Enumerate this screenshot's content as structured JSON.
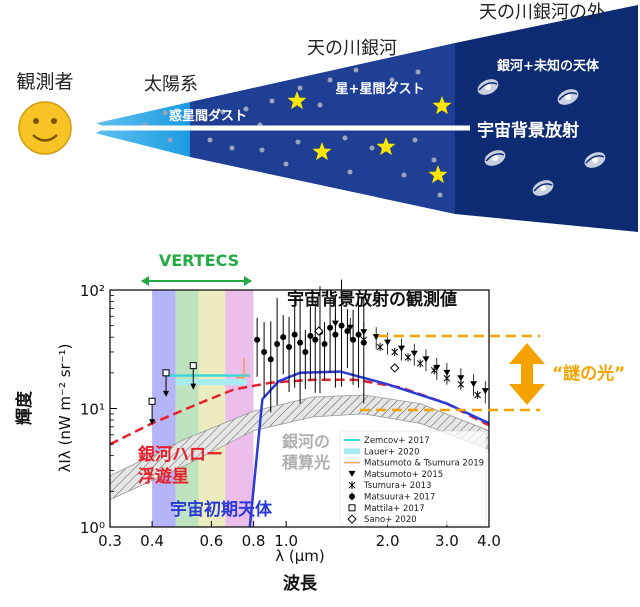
{
  "diagram": {
    "regions": {
      "observer": "観測者",
      "solar_system": "太陽系",
      "milky_way": "天の川銀河",
      "outside": "天の川銀河の外"
    },
    "band_labels": {
      "interplanetary_dust": "惑星間ダスト",
      "stars_dust": "星+星間ダスト",
      "galaxies_unknown": "銀河+未知の天体",
      "cib": "宇宙背景放射"
    }
  },
  "chart_data": {
    "type": "scatter",
    "title": "宇宙背景放射の観測値",
    "xlabel": "λ (μm)",
    "ylabel": "λIλ (nW m⁻² sr⁻¹)",
    "xlabel_jp": "波長",
    "ylabel_jp": "輝度",
    "xscale": "log",
    "yscale": "log",
    "xlim": [
      0.3,
      4.0
    ],
    "ylim": [
      1,
      100
    ],
    "x_ticks": [
      {
        "v": 0.3,
        "l": "0.3"
      },
      {
        "v": 0.4,
        "l": "0.4"
      },
      {
        "v": 0.6,
        "l": "0.6"
      },
      {
        "v": 0.8,
        "l": "0.8"
      },
      {
        "v": 1.0,
        "l": "1.0"
      },
      {
        "v": 2.0,
        "l": "2.0"
      },
      {
        "v": 3.0,
        "l": "3.0"
      },
      {
        "v": 4.0,
        "l": "4.0"
      }
    ],
    "y_ticks": [
      {
        "v": 1,
        "l": "10⁰"
      },
      {
        "v": 10,
        "l": "10¹"
      },
      {
        "v": 100,
        "l": "10²"
      }
    ],
    "vertecs": {
      "label": "VERTECS",
      "color": "#22aa44",
      "bands": [
        {
          "x0": 0.4,
          "x1": 0.47,
          "color": "#7777ee"
        },
        {
          "x0": 0.47,
          "x1": 0.55,
          "color": "#88cc88"
        },
        {
          "x0": 0.55,
          "x1": 0.66,
          "color": "#dddd88"
        },
        {
          "x0": 0.66,
          "x1": 0.8,
          "color": "#dd88dd"
        }
      ]
    },
    "mystery": {
      "label": "“謎の光”",
      "y_high": 38,
      "y_low": 10,
      "color": "#f5a300"
    },
    "labels": {
      "halo": "銀河ハロー\n浮遊星",
      "igl": "銀河の\n積算光",
      "early": "宇宙初期天体"
    },
    "series": [
      {
        "name": "Zemcov+ 2017",
        "color": "#40d8d8",
        "points": [
          [
            0.44,
            19
          ],
          [
            0.66,
            19
          ],
          [
            0.78,
            19
          ]
        ]
      },
      {
        "name": "Lauer+ 2020",
        "color": "#a8ecf4",
        "points": [
          [
            0.6,
            16.7
          ]
        ]
      },
      {
        "name": "Matsumoto & Tsumura 2019",
        "color": "#e8a060",
        "points": [
          [
            0.75,
            23
          ]
        ]
      },
      {
        "name": "Matsumoto+ 2015",
        "color": "#000000",
        "points": [
          [
            1.4,
            52
          ],
          [
            1.55,
            48
          ],
          [
            1.7,
            44
          ],
          [
            1.85,
            40
          ],
          [
            2.0,
            36
          ],
          [
            2.2,
            32
          ],
          [
            2.4,
            29
          ],
          [
            2.6,
            26
          ],
          [
            2.8,
            22
          ],
          [
            3.0,
            20
          ],
          [
            3.3,
            18
          ],
          [
            3.6,
            16
          ],
          [
            3.9,
            14
          ]
        ]
      },
      {
        "name": "Tsumura+ 2013",
        "color": "#000000",
        "points": [
          [
            1.7,
            38
          ],
          [
            1.9,
            33
          ],
          [
            2.1,
            30
          ],
          [
            2.3,
            27
          ],
          [
            2.5,
            24
          ],
          [
            2.75,
            21
          ],
          [
            3.0,
            18
          ],
          [
            3.3,
            16
          ],
          [
            3.7,
            13
          ]
        ]
      },
      {
        "name": "Matsuura+ 2017",
        "color": "#000000",
        "points": [
          [
            0.82,
            38
          ],
          [
            0.86,
            30
          ],
          [
            0.9,
            26
          ],
          [
            0.94,
            35
          ],
          [
            0.98,
            40
          ],
          [
            1.02,
            33
          ],
          [
            1.06,
            42
          ],
          [
            1.1,
            36
          ],
          [
            1.14,
            30
          ],
          [
            1.18,
            41
          ],
          [
            1.22,
            38
          ],
          [
            1.26,
            44
          ],
          [
            1.3,
            35
          ],
          [
            1.35,
            48
          ],
          [
            1.4,
            42
          ],
          [
            1.46,
            50
          ],
          [
            1.52,
            45
          ],
          [
            1.58,
            38
          ],
          [
            1.64,
            42
          ],
          [
            1.7,
            36
          ]
        ]
      },
      {
        "name": "Mattila+ 2017",
        "color": "#000000",
        "points": [
          [
            0.4,
            11.5
          ]
        ]
      },
      {
        "name": "Sano+ 2020",
        "color": "#000000",
        "points": [
          [
            1.25,
            45
          ],
          [
            2.1,
            22
          ]
        ]
      }
    ],
    "models": {
      "halo_red_dashed": [
        [
          0.3,
          5
        ],
        [
          0.4,
          7.5
        ],
        [
          0.55,
          11
        ],
        [
          0.7,
          14.5
        ],
        [
          0.9,
          16.5
        ],
        [
          1.2,
          17.5
        ],
        [
          1.6,
          17.5
        ],
        [
          2.2,
          15
        ],
        [
          3.0,
          11
        ],
        [
          4.0,
          7.2
        ]
      ],
      "early_blue": [
        [
          0.78,
          1.0
        ],
        [
          0.85,
          12
        ],
        [
          0.95,
          17
        ],
        [
          1.1,
          20
        ],
        [
          1.45,
          20.5
        ],
        [
          2.0,
          16
        ],
        [
          3.0,
          11
        ],
        [
          4.0,
          7.5
        ]
      ],
      "igl_band_upper": [
        [
          0.3,
          2.7
        ],
        [
          0.5,
          5.5
        ],
        [
          0.8,
          9.5
        ],
        [
          1.2,
          12.5
        ],
        [
          1.7,
          13
        ],
        [
          2.5,
          11
        ],
        [
          4.0,
          6.5
        ]
      ],
      "igl_band_lower": [
        [
          0.3,
          1.7
        ],
        [
          0.5,
          3.3
        ],
        [
          0.8,
          6.5
        ],
        [
          1.2,
          8.5
        ],
        [
          1.7,
          9
        ],
        [
          2.5,
          7.5
        ],
        [
          4.0,
          4.5
        ]
      ]
    }
  }
}
